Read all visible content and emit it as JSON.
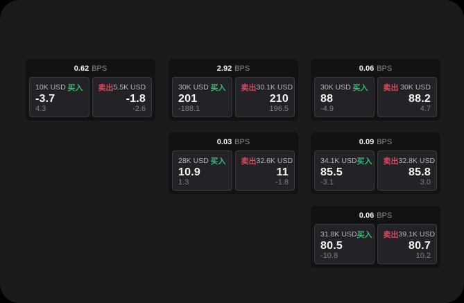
{
  "labels": {
    "buy": "买入",
    "sell": "卖出",
    "bps_unit": "BPS"
  },
  "colors": {
    "background": "#000000",
    "surface": "#1b1b1d",
    "card": "#121214",
    "panel": "#232327",
    "buy_green": "#2ebd6e",
    "sell_red": "#d64a5f",
    "value_white": "#f5f5f6",
    "label_gray": "#b6b6ba",
    "sub_gray": "#7f7f84"
  },
  "cards": [
    {
      "bps": "0.62",
      "buy": {
        "amount": "10K USD",
        "value": "-3.7",
        "sub": "4.3"
      },
      "sell": {
        "amount": "5.5K USD",
        "value": "-1.8",
        "sub": "-2.6"
      }
    },
    {
      "bps": "2.92",
      "buy": {
        "amount": "30K USD",
        "value": "201",
        "sub": "-188.1"
      },
      "sell": {
        "amount": "30.1K USD",
        "value": "210",
        "sub": "196.5"
      }
    },
    {
      "bps": "0.06",
      "buy": {
        "amount": "30K USD",
        "value": "88",
        "sub": "-4.9"
      },
      "sell": {
        "amount": "30K USD",
        "value": "88.2",
        "sub": "4.7"
      }
    },
    {
      "bps": "0.03",
      "buy": {
        "amount": "28K USD",
        "value": "10.9",
        "sub": "1.3"
      },
      "sell": {
        "amount": "32.6K USD",
        "value": "11",
        "sub": "-1.8"
      }
    },
    {
      "bps": "0.09",
      "buy": {
        "amount": "34.1K USD",
        "value": "85.5",
        "sub": "-3.1"
      },
      "sell": {
        "amount": "32.8K USD",
        "value": "85.8",
        "sub": "3.0"
      }
    },
    {
      "bps": "0.06",
      "buy": {
        "amount": "31.8K USD",
        "value": "80.5",
        "sub": "-10.8"
      },
      "sell": {
        "amount": "39.1K USD",
        "value": "80.7",
        "sub": "10.2"
      }
    }
  ]
}
